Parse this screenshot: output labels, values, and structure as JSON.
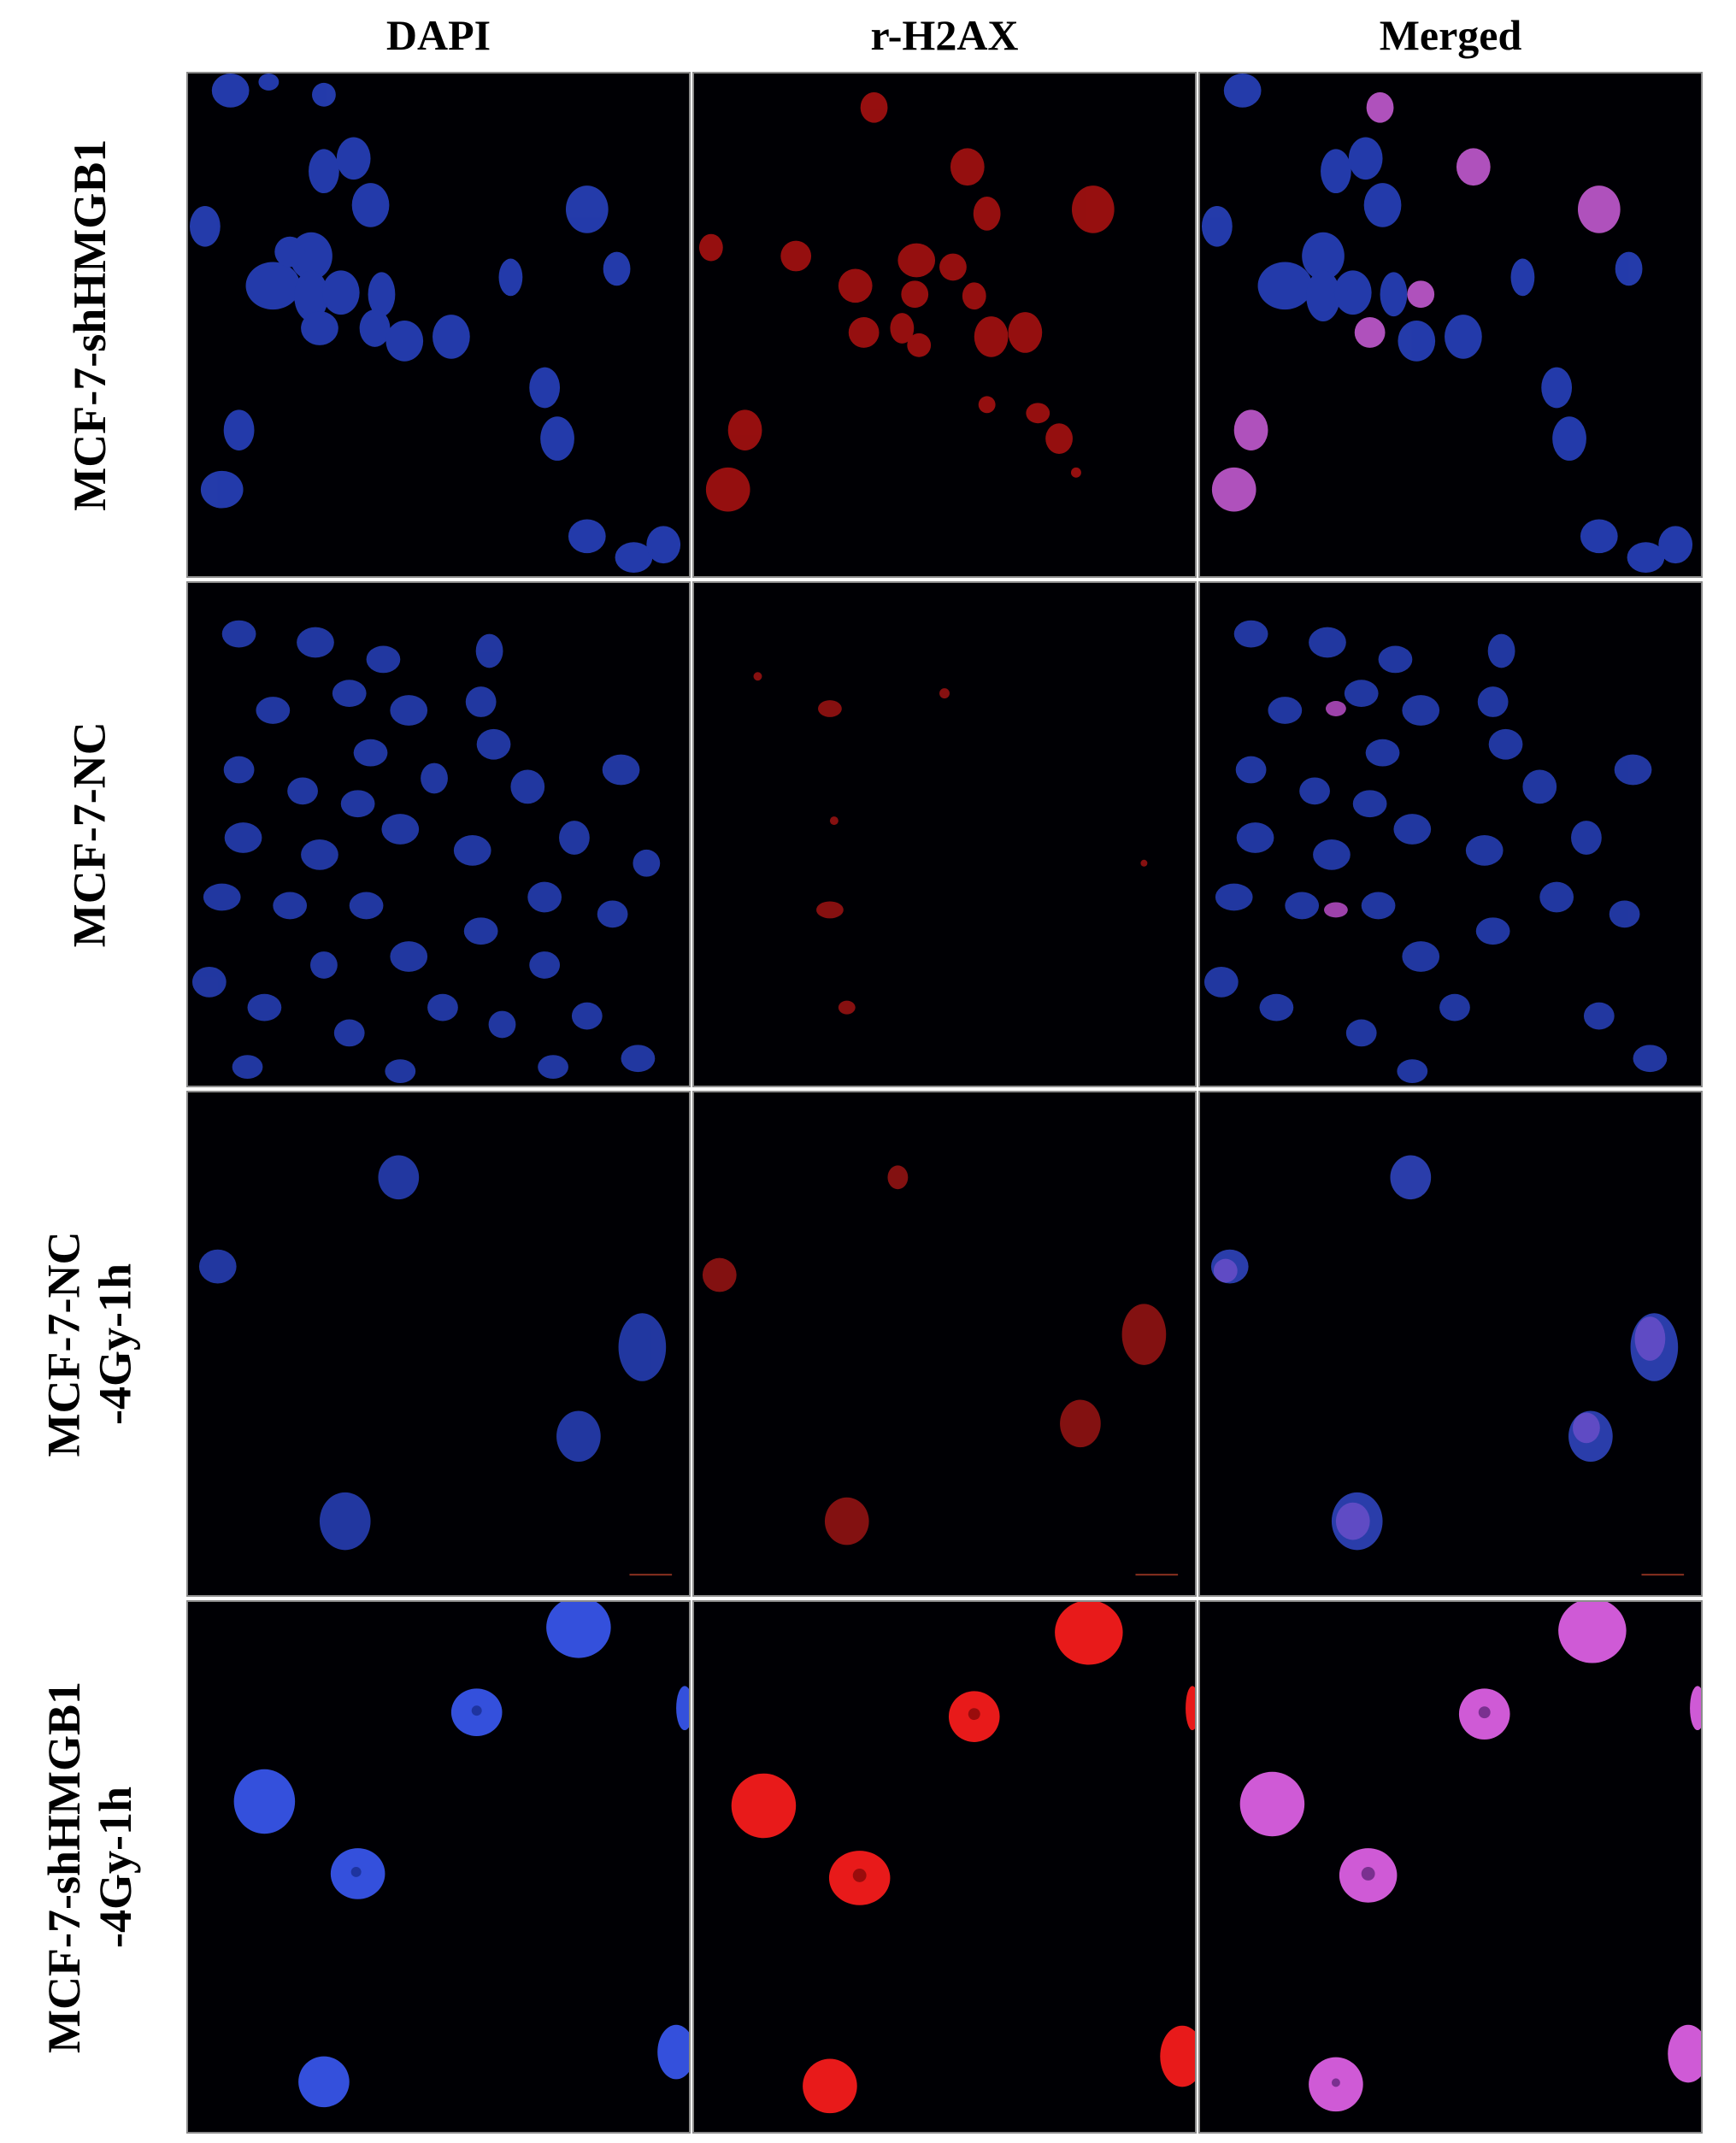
{
  "columns": [
    "DAPI",
    "r-H2AX",
    "Merged"
  ],
  "rows": [
    {
      "label_lines": [
        "MCF-7-shHMGB1"
      ]
    },
    {
      "label_lines": [
        "MCF-7-NC"
      ]
    },
    {
      "label_lines": [
        "MCF-7-NC",
        "-4Gy-1h"
      ]
    },
    {
      "label_lines": [
        "MCF-7-shHMGB1",
        "-4Gy-1h"
      ]
    }
  ],
  "colors": {
    "background": "#000004",
    "dapi": "#3a55d8",
    "h2ax": "#e01818",
    "merged": "#c860d8",
    "panel_border": "#8c8c8c"
  }
}
